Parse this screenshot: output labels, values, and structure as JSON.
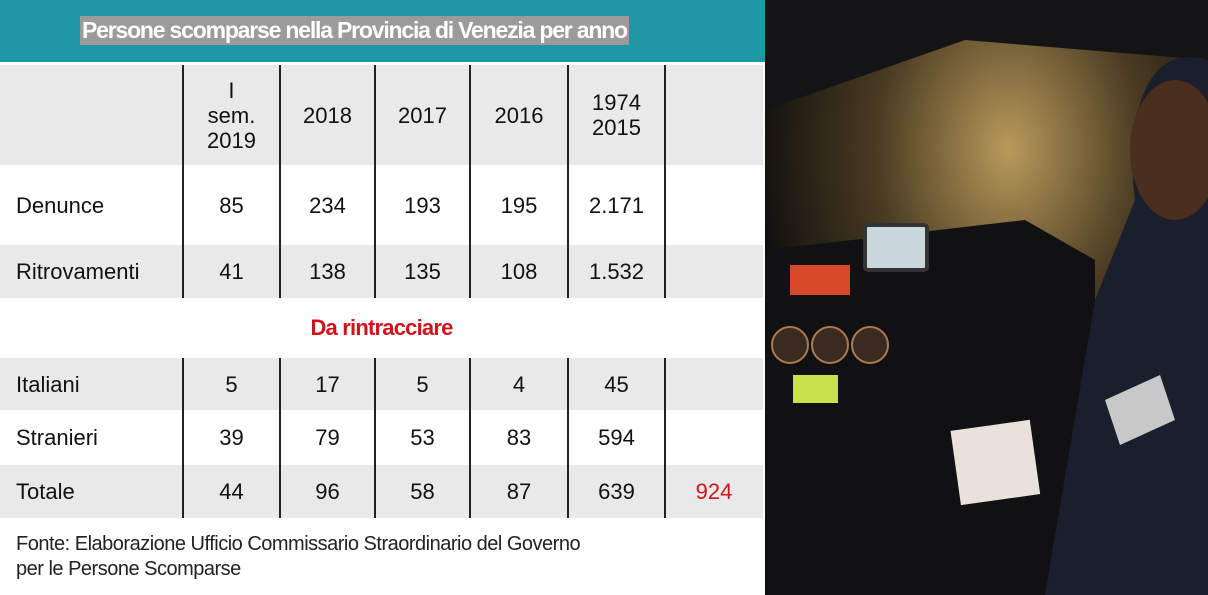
{
  "title": "Persone scomparse nella Provincia di Venezia per anno",
  "table": {
    "columns": [
      "I\nsem.\n2019",
      "2018",
      "2017",
      "2016",
      "1974\n2015"
    ],
    "rows_top": [
      {
        "label": "Denunce",
        "values": [
          "85",
          "234",
          "193",
          "195",
          "2.171"
        ]
      },
      {
        "label": "Ritrovamenti",
        "values": [
          "41",
          "138",
          "135",
          "108",
          "1.532"
        ]
      }
    ],
    "section": "Da rintracciare",
    "rows_bottom": [
      {
        "label": "Italiani",
        "values": [
          "5",
          "17",
          "5",
          "4",
          "45"
        ]
      },
      {
        "label": "Stranieri",
        "values": [
          "39",
          "79",
          "53",
          "83",
          "594"
        ]
      },
      {
        "label": "Totale",
        "values": [
          "44",
          "96",
          "58",
          "87",
          "639"
        ],
        "extra": "924"
      }
    ]
  },
  "source": "Fonte: Elaborazione Ufficio Commissario Straordinario del Governo\nper le Persone Scomparse"
}
